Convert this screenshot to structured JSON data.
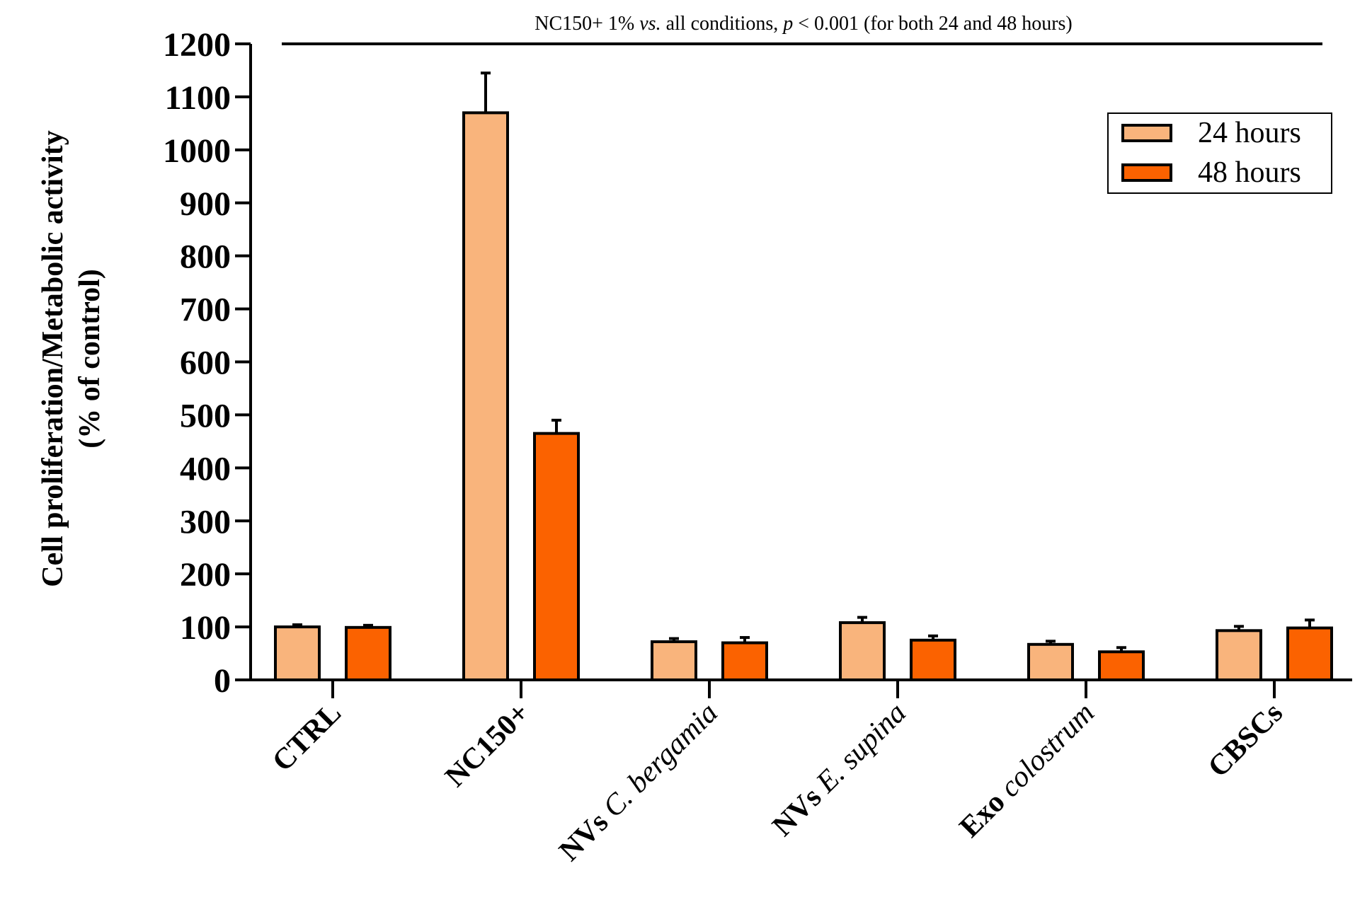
{
  "chart_data": {
    "type": "bar",
    "title": "",
    "annotation": {
      "pre": "NC150+ 1% ",
      "vs": "vs.",
      "mid": " all conditions, ",
      "p": "p",
      "post": " < 0.001 (for both 24 and 48 hours)"
    },
    "ylabel_line1": "Cell proliferation/Metabolic activity",
    "ylabel_line2": "(% of control)",
    "xlabel": "",
    "ylim": [
      0,
      1200
    ],
    "yticks": [
      "0",
      "100",
      "200",
      "300",
      "400",
      "500",
      "600",
      "700",
      "800",
      "900",
      "1000",
      "1100",
      "1200"
    ],
    "categories": [
      {
        "bold": "CTRL",
        "italic": ""
      },
      {
        "bold": "NC150+",
        "italic": ""
      },
      {
        "bold": "NVs ",
        "italic": "C. bergamia"
      },
      {
        "bold": "NVs ",
        "italic": "E. supina"
      },
      {
        "bold": "Exo ",
        "italic": "colostrum"
      },
      {
        "bold": "CBSCs",
        "italic": ""
      }
    ],
    "series": [
      {
        "name": "24 hours",
        "color": "#f9b47c",
        "values": [
          100,
          1070,
          72,
          108,
          67,
          93
        ],
        "errors": [
          4,
          75,
          6,
          10,
          6,
          8
        ]
      },
      {
        "name": "48 hours",
        "color": "#fb6200",
        "values": [
          99,
          465,
          70,
          75,
          53,
          98
        ],
        "errors": [
          4,
          25,
          10,
          8,
          8,
          15
        ]
      }
    ],
    "legend_position": "top-right",
    "grid": false
  }
}
